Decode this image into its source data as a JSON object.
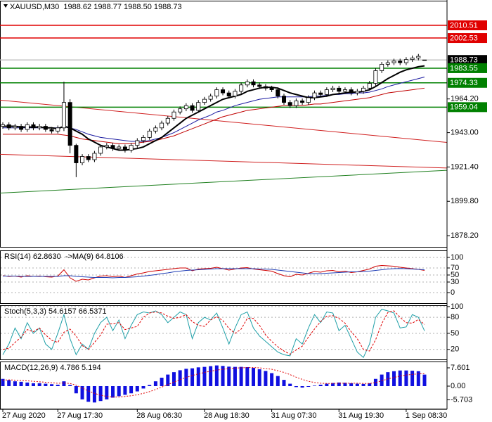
{
  "chart_data": [
    {
      "type": "candlestick",
      "title": "XAUUSD,M30  1988.62 1988.77 1988.50 1988.73",
      "ylim": [
        1870.7,
        2026.0
      ],
      "yticks": [
        {
          "value": 1878.2,
          "label": "1878.20"
        },
        {
          "value": 1899.8,
          "label": "1899.80"
        },
        {
          "value": 1921.4,
          "label": "1921.40"
        },
        {
          "value": 1943.0,
          "label": "1943.00"
        },
        {
          "value": 1964.2,
          "label": "1964.20"
        }
      ],
      "grid": false,
      "categories": [
        "27 Aug 2020",
        null,
        null,
        null,
        null,
        null,
        null,
        null,
        null,
        "27 Aug 17:30",
        null,
        null,
        null,
        null,
        null,
        null,
        null,
        null,
        null,
        null,
        null,
        null,
        "28 Aug 06:30",
        null,
        null,
        null,
        null,
        null,
        null,
        null,
        null,
        null,
        null,
        "28 Aug 18:30",
        null,
        null,
        null,
        null,
        null,
        null,
        null,
        null,
        null,
        null,
        "31 Aug 07:30",
        null,
        null,
        null,
        null,
        null,
        null,
        null,
        null,
        null,
        null,
        "31 Aug 19:30",
        null,
        null,
        null,
        null,
        null,
        null,
        null,
        null,
        null,
        null,
        "1 Sep 08:30",
        null,
        null,
        null
      ],
      "open": [
        1947,
        1948,
        1946,
        1947,
        1945,
        1948,
        1946,
        1947,
        1945,
        1944,
        1946,
        1962,
        1935,
        1924,
        1928,
        1926,
        1930,
        1934,
        1935,
        1933,
        1934,
        1932,
        1935,
        1938,
        1940,
        1944,
        1946,
        1949,
        1952,
        1956,
        1958,
        1960,
        1957,
        1962,
        1964,
        1966,
        1970,
        1968,
        1966,
        1969,
        1973,
        1975,
        1973,
        1972,
        1971,
        1970,
        1966,
        1962,
        1960,
        1963,
        1962,
        1965,
        1968,
        1967,
        1970,
        1971,
        1969,
        1970,
        1968,
        1969,
        1971,
        1974,
        1982,
        1986,
        1987,
        1988,
        1987,
        1989,
        1990,
        1988.62
      ],
      "high": [
        1949.5,
        1949.5,
        1948.5,
        1948.5,
        1949.5,
        1949.5,
        1948.5,
        1948.5,
        1946.5,
        1947.5,
        1975,
        1964,
        1936,
        1929.5,
        1929.5,
        1931.5,
        1935.5,
        1936.5,
        1936.5,
        1935.5,
        1935.5,
        1936.5,
        1939.5,
        1941.5,
        1945.5,
        1947.5,
        1950.5,
        1953.5,
        1957.5,
        1959.5,
        1961.5,
        1961.5,
        1963.5,
        1965.5,
        1967.5,
        1971.5,
        1971.5,
        1969.5,
        1970.5,
        1974.5,
        1976.5,
        1976.5,
        1974.5,
        1973.5,
        1972.5,
        1971.5,
        1967.5,
        1963.5,
        1964.5,
        1964.5,
        1966.5,
        1969.5,
        1969.5,
        1971.5,
        1972.5,
        1972.5,
        1971.5,
        1971.5,
        1970.5,
        1972.5,
        1975.5,
        1983.5,
        1987.5,
        1988.5,
        1989.5,
        1989.5,
        1990.5,
        1991.5,
        1992.5,
        1988.77
      ],
      "low": [
        1945.5,
        1944.5,
        1944.5,
        1943.5,
        1943.5,
        1944.5,
        1944.5,
        1943.5,
        1942.5,
        1942.5,
        1944,
        1930,
        1915,
        1922.5,
        1924.5,
        1924.5,
        1928.5,
        1932.5,
        1931.5,
        1931.5,
        1930.5,
        1930.5,
        1933.5,
        1936.5,
        1938.5,
        1942.5,
        1944.5,
        1947.5,
        1950.5,
        1954.5,
        1956.5,
        1955.5,
        1955.5,
        1960.5,
        1962.5,
        1964.5,
        1966.5,
        1964.5,
        1964.5,
        1967.5,
        1971.5,
        1971.5,
        1970.5,
        1969.5,
        1968.5,
        1964.5,
        1960.5,
        1958.5,
        1958.5,
        1960.5,
        1960.5,
        1963.5,
        1965.5,
        1965.5,
        1968.5,
        1967.5,
        1967.5,
        1966.5,
        1966.5,
        1967.5,
        1969.5,
        1972.5,
        1980.5,
        1984.5,
        1985.5,
        1985.5,
        1985.5,
        1987.5,
        1988.5,
        1988.5
      ],
      "close": [
        1948,
        1946,
        1947,
        1945,
        1948,
        1946,
        1947,
        1945,
        1944,
        1946,
        1962,
        1935,
        1924,
        1928,
        1926,
        1930,
        1934,
        1935,
        1933,
        1934,
        1932,
        1935,
        1938,
        1940,
        1944,
        1946,
        1949,
        1952,
        1956,
        1958,
        1960,
        1957,
        1962,
        1964,
        1966,
        1970,
        1968,
        1966,
        1969,
        1973,
        1975,
        1973,
        1972,
        1971,
        1970,
        1966,
        1962,
        1960,
        1963,
        1962,
        1965,
        1968,
        1967,
        1970,
        1971,
        1969,
        1970,
        1968,
        1969,
        1971,
        1974,
        1982,
        1986,
        1987,
        1988,
        1987,
        1989,
        1990,
        1991,
        1988.73
      ],
      "series": [
        {
          "kind": "line",
          "color": "#c00000",
          "width": 1,
          "values": [
            1942,
            1942,
            1942,
            1942,
            1942,
            1942,
            1942,
            1942,
            1942,
            1942,
            1941.5,
            1941,
            1940,
            1939,
            1938.5,
            1938,
            1937.5,
            1937,
            1936.5,
            1936,
            1936,
            1936,
            1936.5,
            1937,
            1937.5,
            1938,
            1939,
            1940,
            1941,
            1942.5,
            1944,
            1945.5,
            1947,
            1948.5,
            1950,
            1951.5,
            1953,
            1954,
            1955,
            1956,
            1957,
            1957.5,
            1958,
            1958.5,
            1959,
            1959.5,
            1960,
            1960,
            1960,
            1960,
            1960.5,
            1961,
            1961,
            1961.5,
            1962,
            1962.5,
            1963,
            1963.5,
            1964,
            1964.5,
            1965,
            1966,
            1967,
            1968,
            1968.5,
            1969,
            1969.5,
            1970,
            1970.5,
            1971
          ]
        },
        {
          "kind": "line",
          "color": "#1a1aa0",
          "width": 1,
          "values": [
            1946,
            1946,
            1946,
            1946,
            1946,
            1946,
            1946,
            1946,
            1946,
            1946,
            1946.5,
            1946,
            1945,
            1943.5,
            1942,
            1941,
            1940,
            1939.5,
            1939,
            1938.5,
            1938,
            1937.5,
            1937.5,
            1937.5,
            1938,
            1939,
            1940,
            1941.5,
            1943,
            1945,
            1947,
            1949,
            1951,
            1952.5,
            1954,
            1956,
            1957,
            1958.5,
            1960,
            1961,
            1962,
            1963,
            1964,
            1964.5,
            1965,
            1965.5,
            1965.5,
            1965.5,
            1965.5,
            1965.5,
            1965.5,
            1966,
            1966,
            1966.5,
            1967,
            1967,
            1967.5,
            1967.5,
            1968,
            1968,
            1968.5,
            1969.5,
            1970.5,
            1972,
            1973,
            1974,
            1975,
            1976,
            1977,
            1978
          ]
        },
        {
          "kind": "line",
          "color": "#000000",
          "width": 2,
          "values": [
            1947,
            1947,
            1947,
            1946.5,
            1946.5,
            1946.5,
            1946.5,
            1946,
            1946,
            1945.5,
            1947,
            1946,
            1944,
            1942,
            1939,
            1937,
            1935,
            1934,
            1933,
            1932,
            1932,
            1932.5,
            1933,
            1934,
            1936,
            1938,
            1940,
            1943,
            1946,
            1949,
            1952,
            1954,
            1956,
            1958,
            1960,
            1962,
            1964,
            1965,
            1966,
            1967,
            1969,
            1970,
            1971,
            1971.5,
            1971.5,
            1971,
            1969.5,
            1968,
            1967,
            1966,
            1965,
            1965,
            1965.5,
            1966,
            1967,
            1967.5,
            1968,
            1968.5,
            1968.5,
            1969,
            1970,
            1972,
            1974.5,
            1977,
            1979,
            1981,
            1982.5,
            1983.5,
            1984.5,
            1985
          ]
        }
      ],
      "trendlines": [
        {
          "color": "#d02020",
          "values": [
            1963.3,
            1938.2
          ]
        },
        {
          "color": "#d02020",
          "values": [
            1929.3,
            1921.2
          ]
        },
        {
          "color": "#208020",
          "values": [
            1905.1,
            1918.6
          ]
        }
      ],
      "levels": [
        {
          "value": 2010.51,
          "color": "#e00000",
          "line_color": "#e00000"
        },
        {
          "value": 2002.53,
          "color": "#e00000",
          "line_color": "#e00000"
        },
        {
          "value": 1988.73,
          "color": "#000000",
          "line_color": "#c0c0c0"
        },
        {
          "value": 1983.55,
          "color": "#008000",
          "line_color": "#008000"
        },
        {
          "value": 1974.33,
          "color": "#008000",
          "line_color": "#008000"
        },
        {
          "value": 1959.04,
          "color": "#008000",
          "line_color": "#008000"
        }
      ]
    },
    {
      "type": "combo",
      "title": "RSI(14) 62.8630  ->MA(9) 64.8106",
      "ylim": [
        -32,
        120
      ],
      "yticks": [
        100,
        70,
        50,
        30,
        0
      ],
      "grid": true,
      "series": [
        {
          "kind": "line",
          "color": "#d00000",
          "width": 1,
          "values": [
            48,
            46,
            47,
            44,
            48,
            46,
            47,
            45,
            44,
            47,
            65,
            42,
            32,
            38,
            36,
            42,
            47,
            48,
            45,
            47,
            43,
            48,
            53,
            56,
            60,
            62,
            64,
            66,
            68,
            70,
            70,
            62,
            67,
            68,
            69,
            72,
            68,
            64,
            67,
            70,
            71,
            67,
            65,
            63,
            61,
            54,
            48,
            45,
            52,
            50,
            55,
            60,
            58,
            62,
            63,
            59,
            61,
            57,
            59,
            63,
            67,
            75,
            77,
            76,
            75,
            72,
            70,
            68,
            66,
            62.863
          ]
        },
        {
          "kind": "line",
          "color": "#1e3cb4",
          "width": 1,
          "values": [
            47,
            47,
            47,
            46,
            46,
            46,
            46,
            46,
            46,
            46,
            48,
            48,
            46,
            45,
            44,
            43,
            43,
            43,
            42,
            43,
            43,
            44,
            45,
            47,
            49,
            51,
            54,
            56,
            59,
            61,
            63,
            64,
            65,
            66,
            67,
            68,
            68,
            68,
            68,
            68,
            68,
            68,
            67,
            67,
            66,
            64,
            62,
            60,
            58,
            56,
            54,
            54,
            54,
            55,
            56,
            57,
            58,
            59,
            59,
            60,
            61,
            63,
            65,
            67,
            68,
            68.5,
            68,
            67,
            66,
            64.8106
          ]
        }
      ]
    },
    {
      "type": "combo",
      "title": "Stoch(5,3,3) 54.6157 66.5371",
      "ylim": [
        0,
        102.5
      ],
      "yticks": [
        100,
        80,
        50,
        20
      ],
      "grid": true,
      "series": [
        {
          "kind": "line",
          "color": "#20a0a8",
          "width": 1,
          "values": [
            10,
            30,
            60,
            40,
            70,
            50,
            60,
            30,
            20,
            50,
            85,
            40,
            10,
            30,
            20,
            50,
            70,
            80,
            55,
            75,
            40,
            65,
            85,
            90,
            88,
            92,
            85,
            70,
            80,
            90,
            85,
            40,
            70,
            80,
            75,
            88,
            60,
            30,
            60,
            85,
            90,
            60,
            45,
            35,
            25,
            15,
            10,
            8,
            40,
            30,
            60,
            85,
            70,
            90,
            88,
            55,
            65,
            40,
            15,
            5,
            30,
            80,
            95,
            92,
            88,
            60,
            62,
            85,
            80,
            54.6157
          ]
        },
        {
          "kind": "line",
          "color": "#e00000",
          "width": 1,
          "dash": "3,2",
          "values": [
            20,
            22,
            33,
            43,
            57,
            53,
            60,
            47,
            37,
            33,
            52,
            58,
            45,
            27,
            20,
            33,
            47,
            67,
            68,
            70,
            57,
            60,
            63,
            80,
            88,
            90,
            88,
            82,
            78,
            80,
            85,
            72,
            65,
            63,
            75,
            81,
            74,
            59,
            50,
            58,
            78,
            78,
            65,
            47,
            35,
            25,
            17,
            11,
            19,
            26,
            43,
            58,
            72,
            82,
            83,
            78,
            69,
            53,
            40,
            20,
            17,
            38,
            68,
            89,
            92,
            80,
            70,
            69,
            76,
            66.5371
          ]
        }
      ]
    },
    {
      "type": "combo",
      "title": "MACD(12,26,9) 4.786 5.194",
      "ylim": [
        -9.65,
        10.23
      ],
      "yticks": [
        7.601,
        {
          "value": 0,
          "label": "0.00"
        },
        -5.703
      ],
      "grid": false,
      "series": [
        {
          "kind": "bar",
          "color": "#1010e0",
          "values": [
            3,
            2.5,
            2,
            1.8,
            1.5,
            1.2,
            1.2,
            1,
            0.8,
            0.6,
            2,
            0.5,
            -3,
            -5.5,
            -6.5,
            -6.8,
            -6.2,
            -5.5,
            -4.8,
            -4.2,
            -3.6,
            -3,
            -2.2,
            -1,
            0.5,
            2,
            3.5,
            4.8,
            5.8,
            6.6,
            7.2,
            7.4,
            7.8,
            8,
            8.3,
            8.6,
            8.4,
            8.1,
            8,
            8,
            7.9,
            7.6,
            7,
            6.3,
            5.4,
            4.2,
            2.6,
            1,
            -0.4,
            -0.6,
            -0.3,
            0.2,
            0.6,
            1,
            1.3,
            1.5,
            1.4,
            1.2,
            1,
            0.9,
            1.2,
            3,
            4.8,
            5.8,
            6.2,
            6.5,
            6.5,
            6.4,
            6.2,
            4.786
          ]
        },
        {
          "kind": "line",
          "color": "#e00000",
          "width": 1,
          "dash": "2,2",
          "values": [
            2.5,
            2.6,
            2.5,
            2.4,
            2.2,
            2,
            1.8,
            1.6,
            1.4,
            1.2,
            1.3,
            1.1,
            0.4,
            -0.8,
            -2,
            -3,
            -3.8,
            -4.3,
            -4.5,
            -4.5,
            -4.3,
            -4,
            -3.6,
            -3,
            -2.3,
            -1.4,
            -0.4,
            0.6,
            1.7,
            2.7,
            3.6,
            4.4,
            5.1,
            5.7,
            6.2,
            6.7,
            7,
            7.3,
            7.5,
            7.6,
            7.7,
            7.7,
            7.6,
            7.3,
            7,
            6.4,
            5.7,
            4.8,
            3.7,
            2.8,
            2,
            1.5,
            1.2,
            1.1,
            1.1,
            1.2,
            1.2,
            1.2,
            1.2,
            1.1,
            1.1,
            1.5,
            2.2,
            3,
            3.6,
            4.2,
            4.6,
            4.9,
            5.1,
            5.194
          ]
        }
      ]
    }
  ]
}
